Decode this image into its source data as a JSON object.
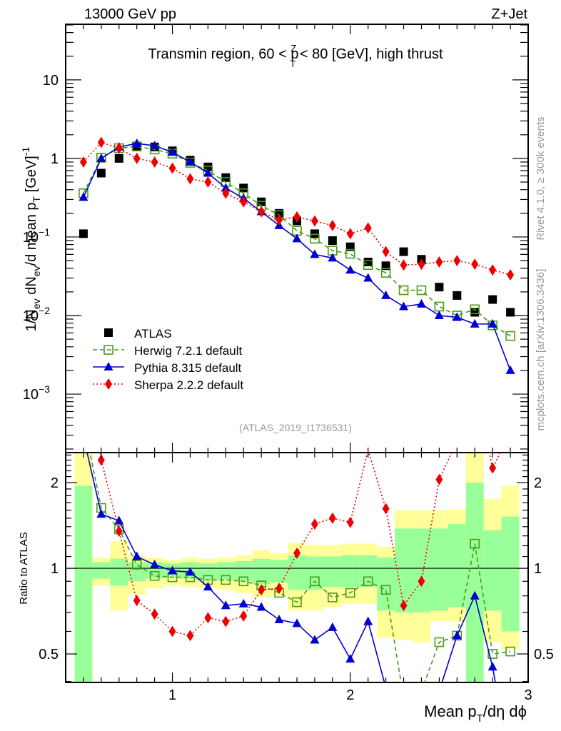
{
  "header": {
    "left_label": "13000 GeV pp",
    "right_label": "Z+Jet"
  },
  "side_labels": {
    "rivet": "Rivet 4.1.0, ≥ 300k events",
    "mcplots": "mcplots.cern.ch [arXiv:1306.3436]"
  },
  "watermark": "(ATLAS_2019_I1736531)",
  "chart_data": [
    {
      "type": "line",
      "panel": "main",
      "title": "Transmin region, 60 < p_T^Z < 80 [GeV], high thrust",
      "title_parts": {
        "pre": "Transmin region, 60 < p",
        "sup": "Z",
        "sub": "T",
        "post": " < 80 [GeV], high thrust"
      },
      "xlabel": "Mean p_T/dη dϕ",
      "ylabel": "1/N_ev dN_ev/d mean p_T [GeV]^-1",
      "ylabel_parts": {
        "a": "1/N",
        "a_sub": "ev",
        "b": " dN",
        "b_sub": "ev",
        "c": "/d mean p",
        "c_sub": "T",
        "d": " [GeV]",
        "d_sup": "-1"
      },
      "yscale": "log",
      "xlim": [
        0.4,
        3.0
      ],
      "ylim": [
        0.00018,
        51
      ],
      "yticks": [
        {
          "value": 10,
          "label": "10"
        },
        {
          "value": 1,
          "label": "1"
        },
        {
          "value": 0.1,
          "label": "10",
          "exp": "−1"
        },
        {
          "value": 0.01,
          "label": "10",
          "exp": "−2"
        },
        {
          "value": 0.001,
          "label": "10",
          "exp": "−3"
        }
      ],
      "x": [
        0.5,
        0.6,
        0.7,
        0.8,
        0.9,
        1.0,
        1.1,
        1.2,
        1.3,
        1.4,
        1.5,
        1.6,
        1.7,
        1.8,
        1.9,
        2.0,
        2.1,
        2.2,
        2.3,
        2.4,
        2.5,
        2.6,
        2.7,
        2.8,
        2.9
      ],
      "legend_position": "lower-left",
      "series": [
        {
          "name": "ATLAS",
          "color": "#000000",
          "marker": "square-filled",
          "line": "none",
          "values": [
            0.11,
            0.65,
            1.0,
            1.4,
            1.4,
            1.25,
            0.95,
            0.78,
            0.57,
            0.42,
            0.28,
            0.2,
            0.16,
            0.11,
            0.09,
            0.075,
            0.048,
            0.043,
            0.065,
            0.052,
            0.023,
            0.018,
            0.011,
            0.016,
            0.011
          ]
        },
        {
          "name": "Herwig 7.2.1 default",
          "color": "#4a9a1e",
          "marker": "square-open",
          "line": "dashed",
          "values": [
            0.36,
            1.02,
            1.35,
            1.42,
            1.3,
            1.15,
            0.88,
            0.7,
            0.5,
            0.36,
            0.25,
            0.19,
            0.12,
            0.095,
            0.067,
            0.061,
            0.044,
            0.035,
            0.021,
            0.021,
            0.013,
            0.01,
            0.012,
            0.0075,
            0.0055
          ]
        },
        {
          "name": "Pythia 8.315 default",
          "color": "#0000d0",
          "marker": "triangle-filled",
          "line": "solid",
          "values": [
            0.32,
            1.0,
            1.4,
            1.55,
            1.45,
            1.2,
            0.9,
            0.65,
            0.42,
            0.31,
            0.21,
            0.14,
            0.095,
            0.06,
            0.054,
            0.038,
            0.03,
            0.018,
            0.013,
            0.014,
            0.01,
            0.0095,
            0.0078,
            0.0078,
            0.002
          ]
        },
        {
          "name": "Sherpa 2.2.2 default",
          "color": "#ee0000",
          "marker": "diamond-filled",
          "line": "dotted",
          "values": [
            0.9,
            1.6,
            1.35,
            1.0,
            0.9,
            0.75,
            0.55,
            0.5,
            0.36,
            0.28,
            0.21,
            0.165,
            0.18,
            0.16,
            0.14,
            0.11,
            0.13,
            0.065,
            0.044,
            0.045,
            0.048,
            0.05,
            0.045,
            0.038,
            0.033
          ]
        }
      ]
    },
    {
      "type": "line",
      "panel": "ratio",
      "ylabel": "Ratio to ATLAS",
      "xlabel": "Mean p_T/dη dϕ",
      "xlabel_parts": {
        "a": "Mean p",
        "a_sub": "T",
        "b": "/dη dϕ"
      },
      "yscale": "log",
      "xlim": [
        0.4,
        3.0
      ],
      "ylim": [
        0.397,
        2.55
      ],
      "yticks": [
        {
          "value": 2,
          "label": "2"
        },
        {
          "value": 1,
          "label": "1"
        },
        {
          "value": 0.5,
          "label": "0.5"
        }
      ],
      "xticks": [
        {
          "value": 1,
          "label": "1"
        },
        {
          "value": 2,
          "label": "2"
        },
        {
          "value": 3,
          "label": "3"
        }
      ],
      "x": [
        0.5,
        0.6,
        0.7,
        0.8,
        0.9,
        1.0,
        1.1,
        1.2,
        1.3,
        1.4,
        1.5,
        1.6,
        1.7,
        1.8,
        1.9,
        2.0,
        2.1,
        2.2,
        2.3,
        2.4,
        2.5,
        2.6,
        2.7,
        2.8,
        2.9
      ],
      "bands": {
        "yellow_color": "#ffff99",
        "green_color": "#99ff99",
        "yellow_hi": [
          3.0,
          1.09,
          1.24,
          1.11,
          1.09,
          1.07,
          1.09,
          1.08,
          1.09,
          1.11,
          1.16,
          1.13,
          1.23,
          1.21,
          1.21,
          1.22,
          1.22,
          1.19,
          1.6,
          1.6,
          1.6,
          1.61,
          3.0,
          1.75,
          1.95
        ],
        "yellow_lo": [
          0.3,
          0.87,
          0.71,
          0.81,
          0.85,
          0.87,
          0.86,
          0.85,
          0.84,
          0.82,
          0.79,
          0.8,
          0.71,
          0.71,
          0.73,
          0.75,
          0.75,
          0.57,
          0.56,
          0.55,
          0.65,
          0.65,
          0.3,
          0.55,
          0.52
        ],
        "green_hi": [
          1.95,
          1.05,
          1.08,
          1.05,
          1.05,
          1.04,
          1.05,
          1.04,
          1.05,
          1.06,
          1.08,
          1.07,
          1.11,
          1.1,
          1.1,
          1.11,
          1.11,
          1.09,
          1.38,
          1.38,
          1.38,
          1.43,
          2.0,
          1.36,
          1.52
        ],
        "green_lo": [
          0.3,
          0.92,
          0.87,
          0.9,
          0.92,
          0.93,
          0.92,
          0.91,
          0.91,
          0.9,
          0.88,
          0.89,
          0.84,
          0.84,
          0.86,
          0.86,
          0.86,
          0.71,
          0.7,
          0.7,
          0.71,
          0.73,
          0.3,
          0.71,
          0.6
        ]
      },
      "series": [
        {
          "name": "Herwig 7.2.1 default",
          "color": "#4a9a1e",
          "values": [
            3.3,
            1.63,
            1.37,
            1.03,
            0.94,
            0.93,
            0.93,
            0.91,
            0.91,
            0.9,
            0.87,
            0.82,
            0.76,
            0.9,
            0.79,
            0.82,
            0.9,
            0.84,
            0.35,
            0.37,
            0.55,
            0.58,
            1.22,
            0.5,
            0.51
          ]
        },
        {
          "name": "Pythia 8.315 default",
          "color": "#0000d0",
          "values": [
            2.9,
            1.55,
            1.47,
            1.1,
            1.03,
            0.98,
            0.97,
            0.86,
            0.74,
            0.75,
            0.73,
            0.66,
            0.64,
            0.56,
            0.62,
            0.48,
            0.65,
            0.38,
            0.2,
            0.25,
            0.37,
            0.58,
            0.8,
            0.45,
            0.2
          ]
        },
        {
          "name": "Sherpa 2.2.2 default",
          "color": "#ee0000",
          "values": [
            8.0,
            2.4,
            1.35,
            0.77,
            0.69,
            0.6,
            0.58,
            0.67,
            0.65,
            0.68,
            0.84,
            0.85,
            1.13,
            1.43,
            1.5,
            1.45,
            2.6,
            1.62,
            0.74,
            0.9,
            2.05,
            2.8,
            4.5,
            2.25,
            3.0
          ]
        }
      ]
    }
  ]
}
